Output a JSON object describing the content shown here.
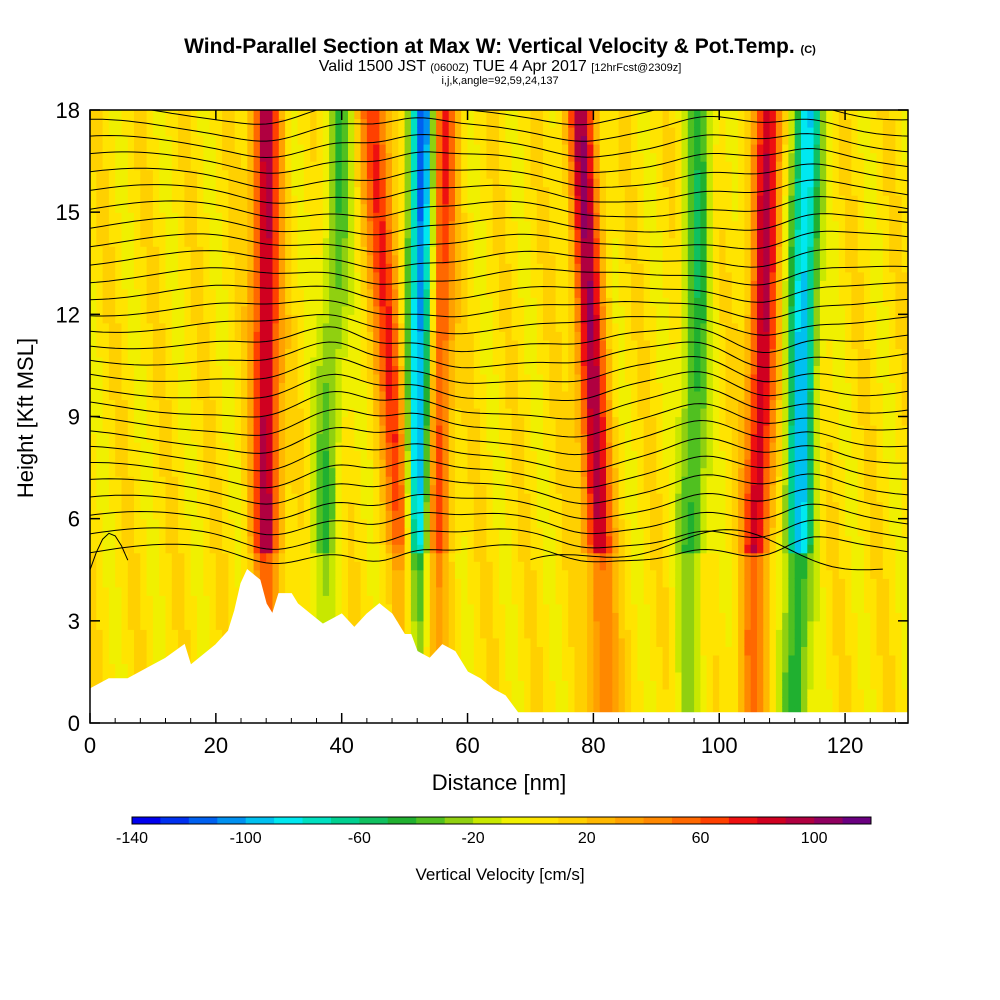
{
  "title": {
    "main": "Wind-Parallel Section at Max W: Vertical Velocity & Pot.Temp.",
    "copyright": "(C)",
    "valid_prefix": "Valid 1500 JST",
    "valid_zulu": "(0600Z)",
    "valid_date": "TUE 4 Apr 2017",
    "forecast": "[12hrFcst@2309z]",
    "indices": "i,j,k,angle=92,59,24,137"
  },
  "colors": {
    "palette": [
      "#0000ee",
      "#0030f0",
      "#0060f0",
      "#0090f0",
      "#00c0f0",
      "#00e8f0",
      "#00e0c0",
      "#00d090",
      "#10c060",
      "#20b030",
      "#50c020",
      "#90d010",
      "#c8e800",
      "#f0f000",
      "#ffe400",
      "#ffd000",
      "#ffb800",
      "#ffa000",
      "#ff8800",
      "#ff6800",
      "#ff4000",
      "#ee1010",
      "#d00020",
      "#b00040",
      "#900060",
      "#6a0080"
    ],
    "terrain": "#ffffff",
    "contour": "#000000"
  },
  "chart_data": {
    "type": "heatmap",
    "xlabel": "Distance [nm]",
    "ylabel": "Height [Kft MSL]",
    "xlim": [
      0,
      130
    ],
    "ylim": [
      0,
      18
    ],
    "xticks": [
      0,
      20,
      40,
      60,
      80,
      100,
      120
    ],
    "yticks": [
      0,
      3,
      6,
      9,
      12,
      15,
      18
    ],
    "colorbar": {
      "label": "Vertical Velocity [cm/s]",
      "range": [
        -140,
        120
      ],
      "ticks": [
        -140,
        -100,
        -60,
        -20,
        20,
        60,
        100
      ]
    },
    "updraft_bands": [
      {
        "x_top": 28,
        "x_bottom": 28,
        "strength": 90
      },
      {
        "x_top": 45,
        "x_bottom": 52,
        "strength": 70
      },
      {
        "x_top": 56,
        "x_bottom": 54,
        "strength": 80
      },
      {
        "x_top": 78,
        "x_bottom": 82,
        "strength": 90
      },
      {
        "x_top": 108,
        "x_bottom": 105,
        "strength": 85
      }
    ],
    "downdraft_bands": [
      {
        "x_top": 53,
        "x_bottom": 52,
        "strength": -130
      },
      {
        "x_top": 40,
        "x_bottom": 36,
        "strength": -40
      },
      {
        "x_top": 97,
        "x_bottom": 95,
        "strength": -50
      },
      {
        "x_top": 114,
        "x_bottom": 112,
        "strength": -100
      }
    ],
    "terrain_profile": {
      "x": [
        0,
        3,
        6,
        10,
        12,
        15,
        16,
        18,
        20,
        22,
        23,
        24,
        25,
        27,
        28,
        29,
        30,
        32,
        33,
        35,
        37,
        40,
        42,
        44,
        46,
        48,
        50,
        51,
        52,
        54,
        56,
        58,
        60,
        62,
        64,
        66,
        68,
        130
      ],
      "height": [
        1.0,
        1.3,
        1.3,
        1.7,
        1.9,
        2.3,
        1.7,
        2.0,
        2.3,
        2.7,
        3.3,
        4.1,
        4.5,
        4.2,
        3.5,
        3.2,
        3.8,
        3.8,
        3.5,
        3.2,
        2.9,
        3.2,
        2.8,
        3.2,
        3.5,
        3.2,
        2.6,
        2.6,
        2.1,
        1.9,
        2.3,
        2.1,
        1.5,
        1.3,
        1.0,
        0.8,
        0.3,
        0.3
      ]
    }
  }
}
